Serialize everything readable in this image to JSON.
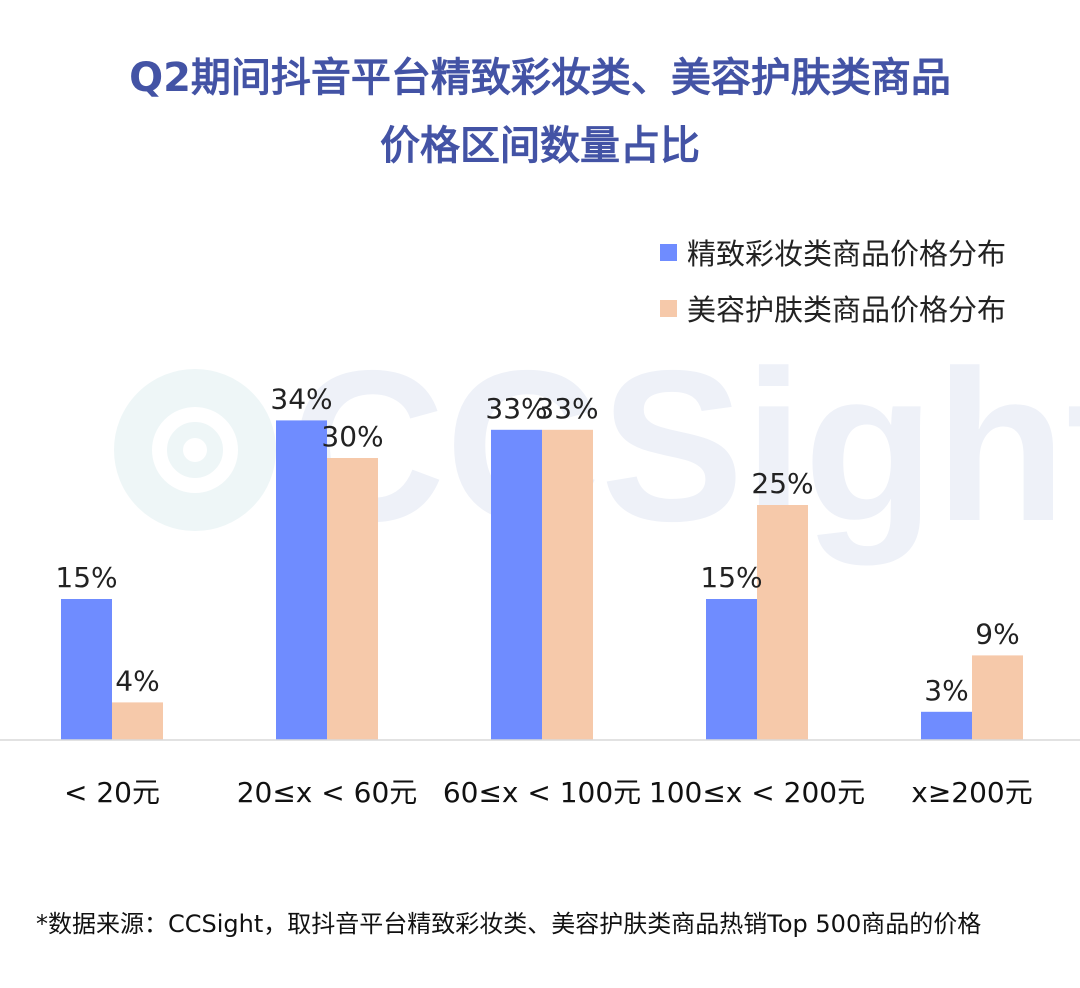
{
  "title_line1": "Q2期间抖音平台精致彩妆类、美容护肤类商品",
  "title_line2": "价格区间数量占比",
  "footnote": "*数据来源：CCSight，取抖音平台精致彩妆类、美容护肤类商品热销Top 500商品的价格",
  "watermark": "CCSight",
  "colors": {
    "title": "#4353a5",
    "series1": "#6f8cff",
    "series2": "#f6c9aa",
    "axis": "#d9d9d9",
    "watermark": "#eef1f8"
  },
  "chart_data": {
    "type": "bar",
    "title": "Q2期间抖音平台精致彩妆类、美容护肤类商品价格区间数量占比",
    "categories": [
      "< 20元",
      "20≤x < 60元",
      "60≤x < 100元",
      "100≤x < 200元",
      "x≥200元"
    ],
    "series": [
      {
        "name": "精致彩妆类商品价格分布",
        "values": [
          15,
          34,
          33,
          15,
          3
        ],
        "labels": [
          "15%",
          "34%",
          "33%",
          "15%",
          "3%"
        ],
        "color": "#6f8cff"
      },
      {
        "name": "美容护肤类商品价格分布",
        "values": [
          4,
          30,
          33,
          25,
          9
        ],
        "labels": [
          "4%",
          "30%",
          "33%",
          "25%",
          "9%"
        ],
        "color": "#f6c9aa"
      }
    ],
    "ylim": [
      0,
      40
    ],
    "unit": "%",
    "grid": false,
    "legend": "top-right",
    "xlabel": "",
    "ylabel": ""
  }
}
